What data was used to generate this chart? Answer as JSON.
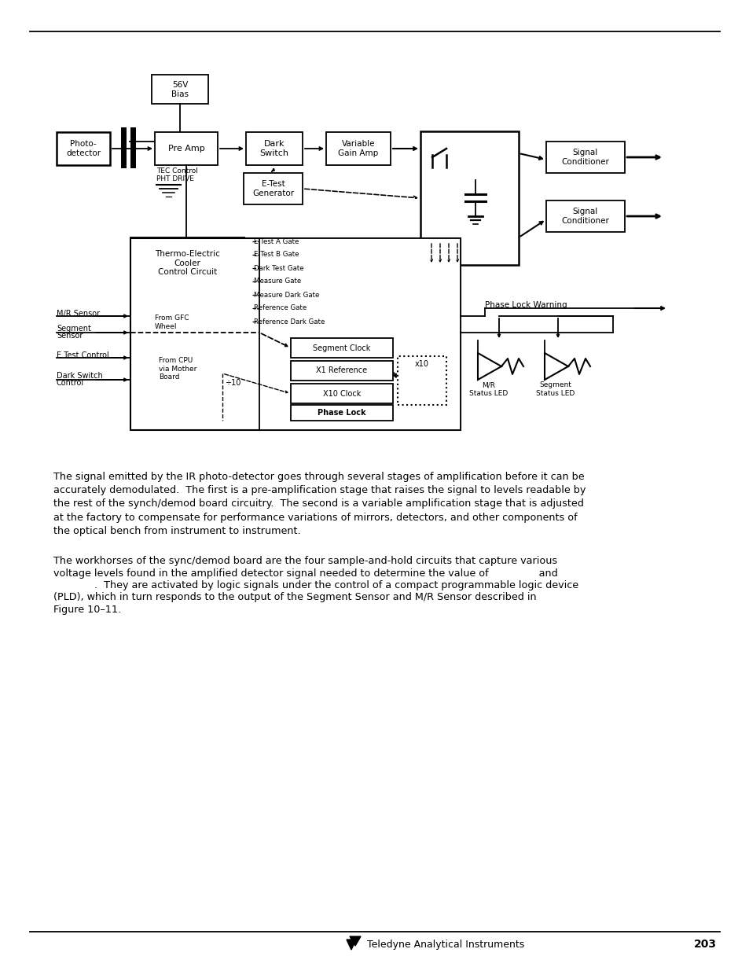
{
  "bg_color": "#ffffff",
  "paragraph1": "The signal emitted by the IR photo-detector goes through several stages of amplification before it can be\naccurately demodulated.  The first is a pre-amplification stage that raises the signal to levels readable by\nthe rest of the synch/demod board circuitry.  The second is a variable amplification stage that is adjusted\nat the factory to compensate for performance variations of mirrors, detectors, and other components of\nthe optical bench from instrument to instrument.",
  "paragraph2_lines": [
    "The workhorses of the sync/demod board are the four sample-and-hold circuits that capture various",
    "voltage levels found in the amplified detector signal needed to determine the value of                and",
    "             .  They are activated by logic signals under the control of a compact programmable logic device",
    "(PLD), which in turn responds to the output of the Segment Sensor and M/R Sensor described in",
    "Figure 10–11."
  ],
  "footer_text": "Teledyne Analytical Instruments",
  "footer_page": "203",
  "gates": [
    "E Test A Gate",
    "E Test B Gate",
    "Dark Test Gate",
    "Measure Gate",
    "Measure Dark Gate",
    "Reference Gate",
    "Reference Dark Gate"
  ]
}
